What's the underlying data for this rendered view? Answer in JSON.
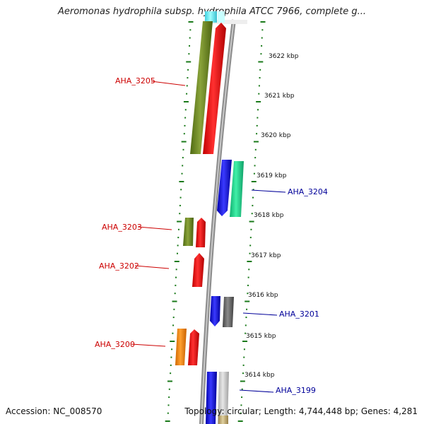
{
  "title": "Aeromonas hydrophila subsp. hydrophila ATCC 7966, complete g...",
  "accession_label": "Accession: NC_008570",
  "topology_label": "Topology: circular; Length: 4,744,448 bp; Genes: 4,281",
  "colors": {
    "forward_label": "#cc0000",
    "reverse_label": "#000099",
    "tick": "#1a7a1a",
    "backbone": "#808080"
  },
  "kbp_ticks": [
    {
      "label": "3622 kbp"
    },
    {
      "label": "3621 kbp"
    },
    {
      "label": "3620 kbp"
    },
    {
      "label": "3619 kbp"
    },
    {
      "label": "3618 kbp"
    },
    {
      "label": "3617 kbp"
    },
    {
      "label": "3616 kbp"
    },
    {
      "label": "3615 kbp"
    },
    {
      "label": "3614 kbp"
    }
  ],
  "gene_labels": [
    {
      "label": "AHA_3205",
      "strand": "forward"
    },
    {
      "label": "AHA_3204",
      "strand": "reverse"
    },
    {
      "label": "AHA_3203",
      "strand": "forward"
    },
    {
      "label": "AHA_3202",
      "strand": "forward"
    },
    {
      "label": "AHA_3201",
      "strand": "reverse"
    },
    {
      "label": "AHA_3200",
      "strand": "forward"
    },
    {
      "label": "AHA_3199",
      "strand": "reverse"
    }
  ]
}
